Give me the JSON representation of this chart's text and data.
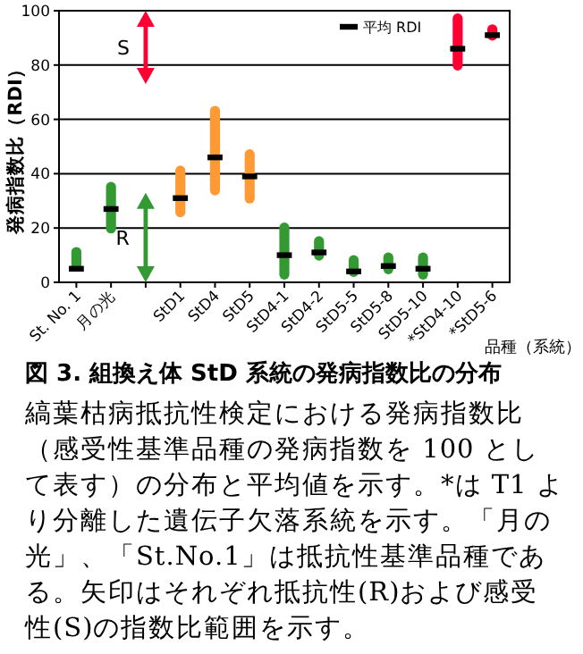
{
  "chart_data": {
    "type": "bar",
    "title": "図 3. 組換え体 StD 系統の発病指数比の分布",
    "xlabel": "品種（系統）",
    "ylabel": "発病指数比（RDI）",
    "categories": [
      "St. No. 1",
      "月の光",
      null,
      "StD1",
      "StD4",
      "StD5",
      "StD4-1",
      "StD4-2",
      "StD5-5",
      "StD5-8",
      "StD5-10",
      "*StD4-10",
      "*StD5-6"
    ],
    "series": [
      {
        "base": [
          4,
          18,
          null,
          24,
          32,
          29,
          1,
          8,
          2,
          3,
          1,
          78,
          89
        ],
        "values": [
          9,
          19,
          null,
          19,
          33,
          20,
          21,
          9,
          8,
          8,
          10,
          21,
          6
        ],
        "colors": [
          "#339933",
          "#339933",
          "#339933",
          "#ff9933",
          "#ff9933",
          "#ff9933",
          "#339933",
          "#339933",
          "#339933",
          "#339933",
          "#339933",
          "#ff0033",
          "#ff0033"
        ]
      },
      {
        "type": "scatter",
        "name": "平均 RDI",
        "color": "#000000",
        "values": [
          5,
          27,
          null,
          31,
          46,
          39,
          10,
          11,
          4,
          6,
          5,
          86,
          91
        ]
      }
    ],
    "ylim": [
      0,
      100
    ],
    "yticks": [
      0,
      20,
      40,
      60,
      80,
      100
    ],
    "grid": "y",
    "legend": "top right",
    "annotations": [
      "S",
      "R",
      "縞葉枯病抵抗性検定における発病指数比（感受性基準品種の発病指数を 100 として表す）の分布と平均値を示す。*は T1 より分離した遺伝子欠落系統を示す。「月の光」、「St.No.1」は抵抗性基準品種である。矢印はそれぞれ抵抗性(R)および感受性(S)の指数比範囲を示す。"
    ]
  }
}
